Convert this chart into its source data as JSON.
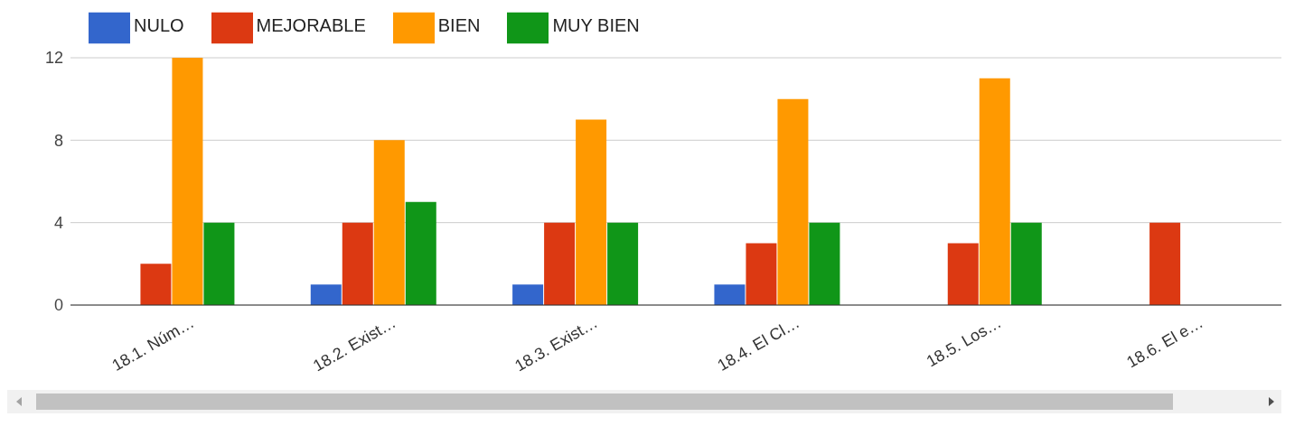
{
  "chart_data": {
    "type": "bar",
    "categories": [
      "18.1. Núm…",
      "18.2. Exist…",
      "18.3. Exist…",
      "18.4. El Cl…",
      "18.5. Los…",
      "18.6. El e…"
    ],
    "series": [
      {
        "name": "NULO",
        "color": "#3366cc",
        "values": [
          0,
          1,
          1,
          1,
          0,
          0
        ]
      },
      {
        "name": "MEJORABLE",
        "color": "#dc3912",
        "values": [
          2,
          4,
          4,
          3,
          3,
          4
        ]
      },
      {
        "name": "BIEN",
        "color": "#ff9900",
        "values": [
          12,
          8,
          9,
          10,
          11,
          null
        ]
      },
      {
        "name": "MUY BIEN",
        "color": "#109618",
        "values": [
          4,
          5,
          4,
          4,
          4,
          null
        ]
      }
    ],
    "ylim": [
      0,
      12
    ],
    "yticks": [
      0,
      4,
      8,
      12
    ],
    "grid": "y",
    "legend": "top left"
  }
}
